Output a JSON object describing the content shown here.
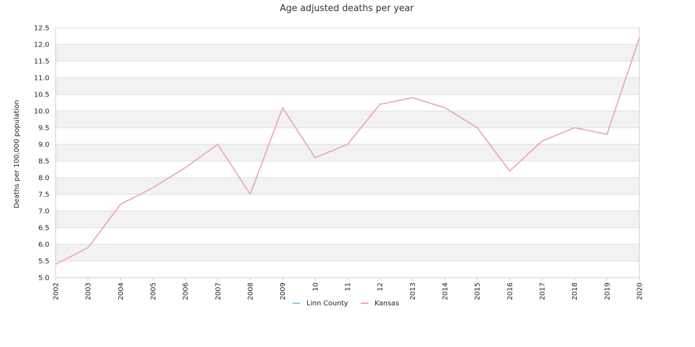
{
  "chart_data": {
    "type": "line",
    "title": "Age adjusted deaths per year",
    "xlabel": "",
    "ylabel": "Deaths per 100,000 population",
    "categories": [
      "2002",
      "2003",
      "2004",
      "2005",
      "2006",
      "2007",
      "2008",
      "2009",
      "10",
      "11",
      "12",
      "2013",
      "2014",
      "2015",
      "2016",
      "2017",
      "2018",
      "2019",
      "2020"
    ],
    "ylim": [
      5.0,
      12.5
    ],
    "yticks": [
      "5.0",
      "5.5",
      "6.0",
      "6.5",
      "7.0",
      "7.5",
      "8.0",
      "8.5",
      "9.0",
      "9.5",
      "10.0",
      "10.5",
      "11.0",
      "11.5",
      "12.0",
      "12.5"
    ],
    "grid": true,
    "legend_position": "bottom",
    "series": [
      {
        "name": "Linn County",
        "color": "#8ecae6",
        "values": [
          5.4,
          5.9,
          7.2,
          7.7,
          8.3,
          9.0,
          7.5,
          10.1,
          8.6,
          9.0,
          10.2,
          10.4,
          10.1,
          9.5,
          8.2,
          9.1,
          9.5,
          9.3,
          12.2
        ]
      },
      {
        "name": "Kansas",
        "color": "#f4a0c8",
        "values": [
          5.4,
          5.9,
          7.2,
          7.7,
          8.3,
          9.0,
          7.5,
          10.1,
          8.6,
          9.0,
          10.2,
          10.4,
          10.1,
          9.5,
          8.2,
          9.1,
          9.5,
          9.3,
          12.2
        ]
      }
    ]
  }
}
